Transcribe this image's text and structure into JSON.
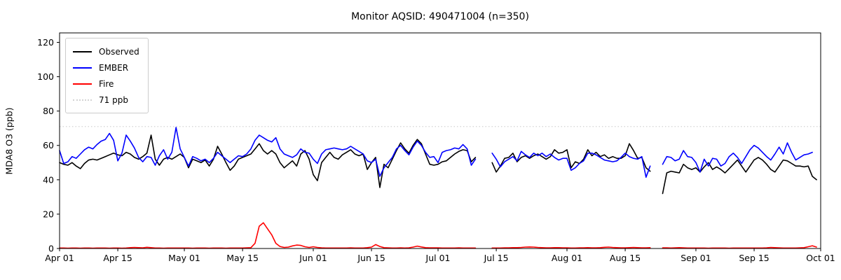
{
  "title": "Monitor AQSID: 490471004 (n=350)",
  "legend": {
    "items": [
      {
        "label": "Observed",
        "color": "#000000",
        "style": "solid"
      },
      {
        "label": "EMBER",
        "color": "#0000ff",
        "style": "solid"
      },
      {
        "label": "Fire",
        "color": "#ff0000",
        "style": "solid"
      },
      {
        "label": "71 ppb",
        "color": "#d3d3d3",
        "style": "dotted"
      }
    ]
  },
  "chart_data": {
    "type": "line",
    "title": "Monitor AQSID: 490471004 (n=350)",
    "xlabel": "",
    "ylabel": "MDA8 O3 (ppb)",
    "ylim": [
      0,
      125.5
    ],
    "yticks": [
      0,
      20,
      40,
      60,
      80,
      100,
      120
    ],
    "x_range": [
      "Apr 01",
      "Oct 01"
    ],
    "x_unit": "days since Apr 01 (daily values, null = missing)",
    "xticks": [
      {
        "label": "Apr 01",
        "day": 0
      },
      {
        "label": "Apr 15",
        "day": 14
      },
      {
        "label": "May 01",
        "day": 30
      },
      {
        "label": "May 15",
        "day": 44
      },
      {
        "label": "Jun 01",
        "day": 61
      },
      {
        "label": "Jun 15",
        "day": 75
      },
      {
        "label": "Jul 01",
        "day": 91
      },
      {
        "label": "Jul 15",
        "day": 105
      },
      {
        "label": "Aug 01",
        "day": 122
      },
      {
        "label": "Aug 15",
        "day": 136
      },
      {
        "label": "Sep 01",
        "day": 153
      },
      {
        "label": "Sep 15",
        "day": 167
      },
      {
        "label": "Oct 01",
        "day": 183
      }
    ],
    "reference_line": {
      "label": "71 ppb",
      "value": 71,
      "color": "#d3d3d3",
      "style": "dotted"
    },
    "grid": false,
    "legend_position": "upper left",
    "series": [
      {
        "name": "Observed",
        "color": "#000000",
        "values": [
          50,
          49,
          48.5,
          50,
          48,
          46.5,
          49.5,
          51.5,
          52,
          51.5,
          52.5,
          53.5,
          54.5,
          55.5,
          54.5,
          54,
          56,
          55,
          53,
          52,
          53.5,
          55.5,
          66,
          52,
          48.5,
          52,
          53,
          52,
          53.5,
          55,
          53,
          47,
          52,
          51,
          50,
          51.5,
          48,
          52,
          59.5,
          55,
          50,
          45.5,
          48,
          52,
          53,
          54,
          55,
          58,
          61,
          57,
          55,
          57,
          55,
          50,
          47,
          49,
          51,
          48,
          55,
          57,
          52,
          43,
          39.5,
          50,
          53,
          56,
          53,
          52,
          54.5,
          56,
          57.5,
          55,
          54,
          55,
          46,
          50,
          53,
          35.5,
          49,
          47,
          52,
          57,
          61.5,
          58,
          55.5,
          60,
          63.5,
          61,
          55,
          49,
          48.5,
          49,
          50.5,
          51,
          53,
          55,
          56.5,
          57.5,
          57,
          50.5,
          53,
          null,
          null,
          null,
          50,
          44.5,
          48,
          52.5,
          53,
          55.5,
          50.5,
          53,
          54,
          52.5,
          54,
          55,
          53.5,
          52,
          53.5,
          57.5,
          55.5,
          56,
          57.5,
          47,
          50.5,
          49.5,
          52,
          57.5,
          54,
          56,
          53.5,
          54.5,
          52.5,
          53.5,
          52.5,
          52.5,
          54,
          61,
          57,
          52.5,
          53,
          47,
          45,
          null,
          null,
          32,
          44,
          45,
          44.5,
          44,
          49,
          47,
          46,
          47,
          44.5,
          47.5,
          50,
          46,
          47.5,
          46,
          44,
          46.5,
          49,
          51.5,
          48,
          44.5,
          48,
          51.5,
          53,
          51.5,
          49,
          46,
          44.5,
          48,
          51.5,
          51,
          49.5,
          48,
          48,
          47.5,
          48,
          42,
          40,
          null
        ]
      },
      {
        "name": "EMBER",
        "color": "#0000ff",
        "values": [
          57,
          49.5,
          50.5,
          53.5,
          52.5,
          55,
          57.5,
          59,
          58,
          60.5,
          62.5,
          63.5,
          67,
          63,
          51,
          55.5,
          66,
          62.5,
          58.5,
          53,
          50.5,
          53.5,
          53,
          48.5,
          54,
          57.5,
          52,
          56,
          70.5,
          58,
          53,
          48,
          53.5,
          52.5,
          51,
          52,
          50,
          52.5,
          56,
          54,
          52,
          50,
          52,
          54,
          53.5,
          55,
          58,
          63,
          66,
          64.5,
          63,
          62,
          64.5,
          58,
          55,
          54,
          53,
          54.5,
          58,
          56,
          55.5,
          52,
          49.5,
          55,
          57.5,
          58,
          58.5,
          58,
          57.5,
          58,
          59.5,
          58,
          56.5,
          55,
          51,
          50,
          52,
          42,
          47,
          50,
          53,
          58,
          60,
          57,
          54.5,
          59,
          62.5,
          60,
          56,
          53,
          53.5,
          50,
          56,
          57,
          57.5,
          58.5,
          58,
          60.5,
          58,
          48.5,
          52,
          null,
          null,
          null,
          55.5,
          52,
          47.5,
          50.5,
          52,
          53.5,
          51,
          56.5,
          54.5,
          53,
          55.5,
          54,
          55.5,
          53.5,
          55,
          53,
          51.5,
          52.5,
          52.5,
          45.5,
          47,
          49.5,
          51,
          55.5,
          55.5,
          54.5,
          53,
          51.5,
          51,
          50.5,
          51,
          53,
          55.5,
          53.5,
          52.5,
          52,
          53.5,
          41.5,
          48,
          null,
          null,
          49,
          53.5,
          53,
          51,
          52,
          57,
          53.5,
          53,
          50,
          44.5,
          52,
          48,
          52.5,
          52,
          48,
          49.5,
          53.5,
          55.5,
          53,
          49.5,
          53.5,
          57.5,
          60,
          58.5,
          56,
          53.5,
          51.5,
          55,
          59,
          55,
          61.5,
          56,
          51.5,
          53,
          54.5,
          55,
          56,
          null,
          null
        ]
      },
      {
        "name": "Fire",
        "color": "#ff0000",
        "values": [
          0.3,
          0.3,
          0.2,
          0.3,
          0.3,
          0.2,
          0.3,
          0.3,
          0.2,
          0.3,
          0.3,
          0.3,
          0.2,
          0.3,
          0.3,
          0.2,
          0.3,
          0.5,
          0.6,
          0.5,
          0.4,
          0.7,
          0.5,
          0.3,
          0.3,
          0.2,
          0.3,
          0.3,
          0.3,
          0.3,
          0.3,
          0.3,
          0.2,
          0.3,
          0.3,
          0.3,
          0.2,
          0.3,
          0.3,
          0.3,
          0.2,
          0.3,
          0.3,
          0.3,
          0.3,
          0.4,
          0.5,
          3,
          13,
          15,
          11.5,
          8,
          3,
          1.2,
          0.6,
          0.8,
          1.5,
          2.0,
          1.8,
          1.0,
          0.6,
          1.0,
          0.6,
          0.4,
          0.3,
          0.3,
          0.3,
          0.3,
          0.3,
          0.3,
          0.4,
          0.3,
          0.3,
          0.3,
          0.5,
          0.8,
          2.3,
          1.2,
          0.5,
          0.4,
          0.3,
          0.3,
          0.4,
          0.3,
          0.4,
          0.8,
          1.4,
          0.9,
          0.5,
          0.4,
          0.4,
          0.4,
          0.3,
          0.3,
          0.3,
          0.3,
          0.4,
          0.3,
          0.3,
          0.3,
          0.3,
          null,
          null,
          null,
          0.3,
          0.3,
          0.3,
          0.4,
          0.4,
          0.5,
          0.5,
          0.6,
          0.8,
          0.9,
          0.8,
          0.6,
          0.5,
          0.4,
          0.4,
          0.5,
          0.5,
          0.4,
          0.4,
          0.3,
          0.3,
          0.4,
          0.4,
          0.5,
          0.4,
          0.4,
          0.5,
          0.7,
          0.8,
          0.6,
          0.5,
          0.4,
          0.4,
          0.5,
          0.6,
          0.5,
          0.4,
          0.4,
          0.5,
          null,
          null,
          0.4,
          0.4,
          0.3,
          0.4,
          0.5,
          0.4,
          0.3,
          0.3,
          0.3,
          0.3,
          0.3,
          0.2,
          0.3,
          0.3,
          0.3,
          0.3,
          0.2,
          0.3,
          0.3,
          0.3,
          0.3,
          0.3,
          0.3,
          0.3,
          0.3,
          0.4,
          0.6,
          0.5,
          0.4,
          0.3,
          0.3,
          0.3,
          0.3,
          0.4,
          0.5,
          1.0,
          1.6,
          0.8,
          null
        ]
      }
    ]
  }
}
